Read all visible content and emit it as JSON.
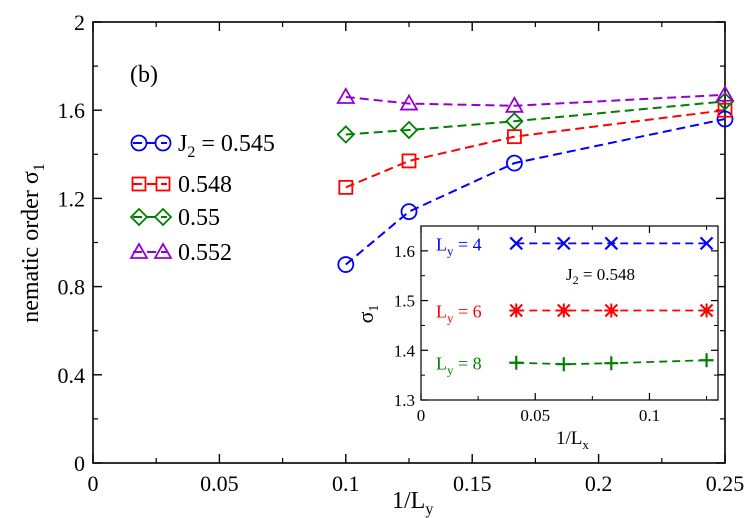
{
  "chart_data": [
    {
      "type": "line",
      "panel_label": "(b)",
      "xlabel_main": "1/L",
      "xlabel_sub": "y",
      "ylabel_main": "nematic order σ",
      "ylabel_sub": "1",
      "xlim": [
        0,
        0.25
      ],
      "ylim": [
        0,
        2
      ],
      "xticks": [
        0,
        0.05,
        0.1,
        0.15,
        0.2,
        0.25
      ],
      "xtick_labels": [
        "0",
        "0.05",
        "0.1",
        "0.15",
        "0.2",
        "0.25"
      ],
      "yticks": [
        0,
        0.4,
        0.8,
        1.2,
        1.6,
        2
      ],
      "ytick_labels": [
        "0",
        "0.4",
        "0.8",
        "1.2",
        "1.6",
        "2"
      ],
      "x": [
        0.1,
        0.125,
        0.1667,
        0.25
      ],
      "series": [
        {
          "name": "J2 = 0.545",
          "legend_main": "J",
          "legend_sub": "2",
          "legend_rest": " = 0.545",
          "color": "#0000ff",
          "marker": "circle",
          "values": [
            0.9,
            1.14,
            1.36,
            1.56
          ]
        },
        {
          "name": "0.548",
          "legend_main": "0.548",
          "legend_sub": "",
          "legend_rest": "",
          "color": "#ff0000",
          "marker": "square",
          "values": [
            1.25,
            1.37,
            1.48,
            1.6
          ]
        },
        {
          "name": "0.55",
          "legend_main": "0.55",
          "legend_sub": "",
          "legend_rest": "",
          "color": "#008000",
          "marker": "diamond",
          "values": [
            1.49,
            1.51,
            1.55,
            1.64
          ]
        },
        {
          "name": "0.552",
          "legend_main": "0.552",
          "legend_sub": "",
          "legend_rest": "",
          "color": "#9400d3",
          "marker": "triangle",
          "values": [
            1.66,
            1.63,
            1.62,
            1.67
          ]
        }
      ]
    },
    {
      "type": "line",
      "inset": true,
      "annotation_main": "J",
      "annotation_sub": "2",
      "annotation_rest": " = 0.548",
      "xlabel_main": "1/L",
      "xlabel_sub": "x",
      "ylabel_main": "σ",
      "ylabel_sub": "1",
      "xlim": [
        0,
        0.13
      ],
      "ylim": [
        1.3,
        1.65
      ],
      "xticks": [
        0,
        0.05,
        0.1
      ],
      "xtick_labels": [
        "0",
        "0.05",
        "0.1"
      ],
      "yticks": [
        1.3,
        1.4,
        1.5,
        1.6
      ],
      "ytick_labels": [
        "1.3",
        "1.4",
        "1.5",
        "1.6"
      ],
      "x": [
        0.0417,
        0.0625,
        0.0833,
        0.125
      ],
      "series": [
        {
          "name": "Ly = 4",
          "label_main": "L",
          "label_sub": "y",
          "label_rest": " = 4",
          "color": "#0000ff",
          "marker": "x",
          "values": [
            1.615,
            1.615,
            1.615,
            1.615
          ]
        },
        {
          "name": "Ly = 6",
          "label_main": "L",
          "label_sub": "y",
          "label_rest": " = 6",
          "color": "#ff0000",
          "marker": "asterisk",
          "values": [
            1.48,
            1.48,
            1.48,
            1.48
          ]
        },
        {
          "name": "Ly = 8",
          "label_main": "L",
          "label_sub": "y",
          "label_rest": " = 8",
          "color": "#008000",
          "marker": "plus",
          "values": [
            1.375,
            1.372,
            1.374,
            1.38
          ]
        }
      ]
    }
  ]
}
